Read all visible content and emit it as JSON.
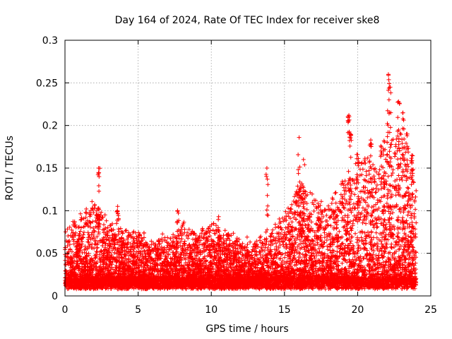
{
  "chart_data": {
    "type": "scatter",
    "title": "Day 164 of 2024, Rate Of TEC Index for receiver ske8",
    "xlabel": "GPS time / hours",
    "ylabel": "ROTI / TECUs",
    "xlim": [
      0,
      25
    ],
    "ylim": [
      0,
      0.3
    ],
    "x_ticks": [
      0,
      5,
      10,
      15,
      20,
      25
    ],
    "x_tick_labels": [
      "0",
      "5",
      "10",
      "15",
      "20",
      "25"
    ],
    "y_ticks": [
      0,
      0.05,
      0.1,
      0.15,
      0.2,
      0.25,
      0.3
    ],
    "y_tick_labels": [
      "0",
      "0.05",
      "0.1",
      "0.15",
      "0.2",
      "0.25",
      "0.3"
    ],
    "grid": true,
    "marker": "+",
    "color": "#ff0000",
    "series": [
      {
        "name": "ROTI",
        "envelope_x": [
          0,
          1,
          2,
          3,
          4,
          5,
          6,
          7,
          8,
          9,
          10,
          11,
          12,
          13,
          14,
          15,
          16,
          17,
          18,
          19,
          20,
          21,
          22,
          23,
          24
        ],
        "envelope_y": [
          0.06,
          0.08,
          0.1,
          0.07,
          0.06,
          0.06,
          0.05,
          0.06,
          0.07,
          0.06,
          0.07,
          0.06,
          0.05,
          0.05,
          0.06,
          0.08,
          0.12,
          0.1,
          0.09,
          0.12,
          0.14,
          0.15,
          0.17,
          0.18,
          0.12
        ],
        "spikes": [
          {
            "x": 2.3,
            "y": 0.15
          },
          {
            "x": 3.6,
            "y": 0.105
          },
          {
            "x": 7.7,
            "y": 0.1
          },
          {
            "x": 10.5,
            "y": 0.093
          },
          {
            "x": 13.8,
            "y": 0.15
          },
          {
            "x": 16.0,
            "y": 0.186
          },
          {
            "x": 16.3,
            "y": 0.16
          },
          {
            "x": 19.4,
            "y": 0.212
          },
          {
            "x": 19.5,
            "y": 0.19
          },
          {
            "x": 20.0,
            "y": 0.166
          },
          {
            "x": 20.9,
            "y": 0.183
          },
          {
            "x": 21.8,
            "y": 0.182
          },
          {
            "x": 22.1,
            "y": 0.26
          },
          {
            "x": 22.2,
            "y": 0.245
          },
          {
            "x": 22.8,
            "y": 0.228
          },
          {
            "x": 23.1,
            "y": 0.215
          },
          {
            "x": 23.4,
            "y": 0.19
          },
          {
            "x": 23.7,
            "y": 0.165
          }
        ]
      }
    ]
  }
}
